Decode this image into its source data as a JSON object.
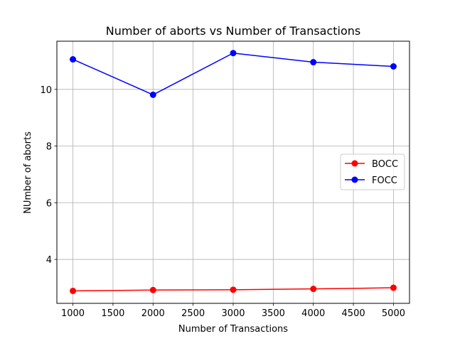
{
  "chart_data": {
    "type": "line",
    "title": "Number of aborts vs Number of Transactions",
    "xlabel": "Number of Transactions",
    "ylabel": "NUmber of aborts",
    "x": [
      1000,
      2000,
      3000,
      4000,
      5000
    ],
    "xlim": [
      800,
      5200
    ],
    "ylim": [
      2.45,
      11.7
    ],
    "xticks": [
      1000,
      1500,
      2000,
      2500,
      3000,
      3500,
      4000,
      4500,
      5000
    ],
    "yticks": [
      4,
      6,
      8,
      10
    ],
    "grid": true,
    "legend_position": "center-right",
    "series": [
      {
        "name": "BOCC",
        "color": "#ff0000",
        "marker": "circle",
        "values": [
          2.89,
          2.92,
          2.93,
          2.96,
          3.0
        ]
      },
      {
        "name": "FOCC",
        "color": "#0000ff",
        "marker": "circle",
        "values": [
          11.06,
          9.81,
          11.28,
          10.96,
          10.81
        ]
      }
    ]
  }
}
